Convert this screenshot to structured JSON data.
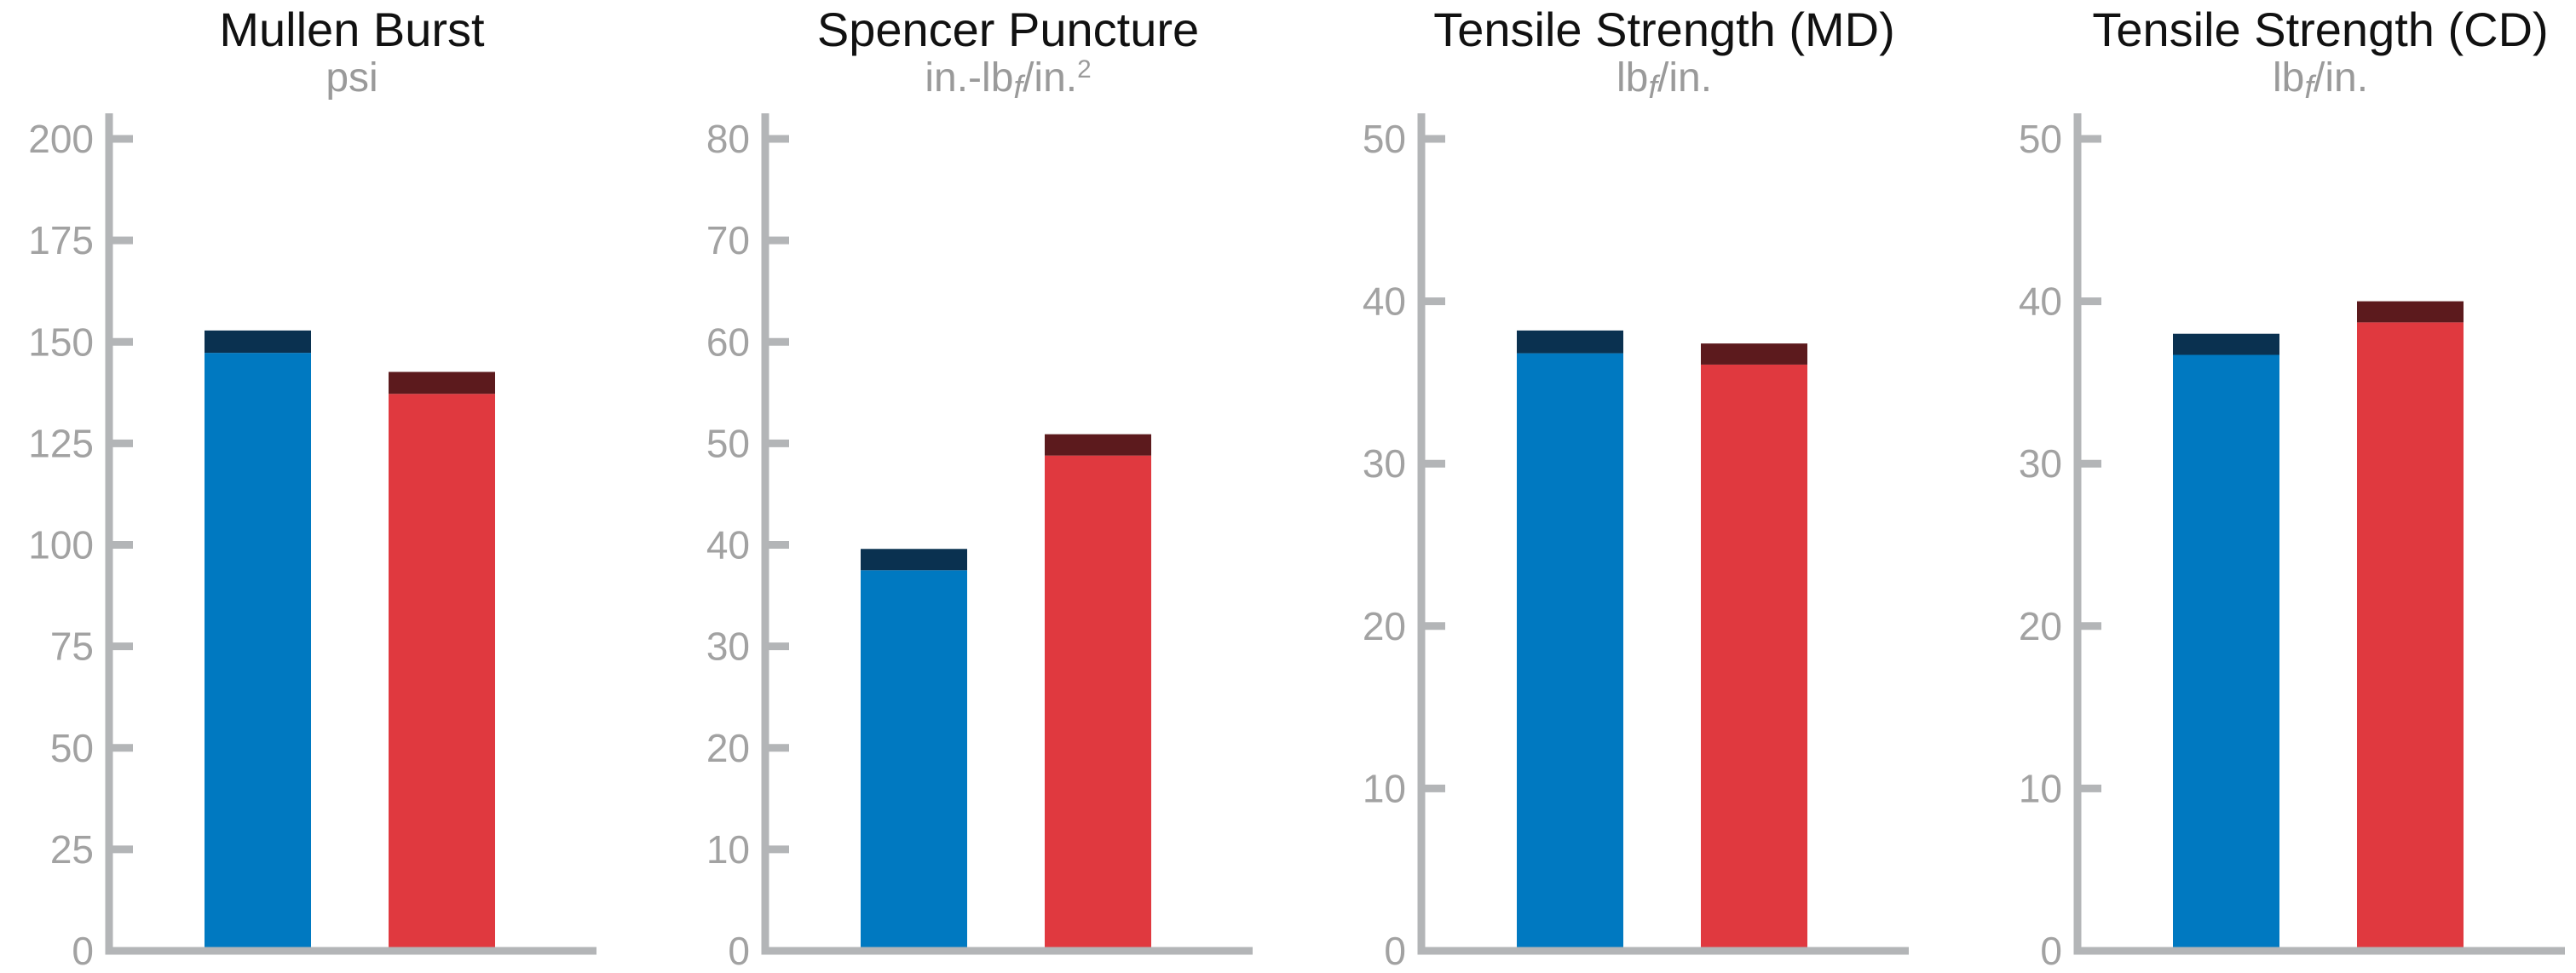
{
  "colors": {
    "series_a": "#0079c1",
    "series_a_cap": "#0a3150",
    "series_b": "#e0393f",
    "series_b_cap": "#5c1a1d",
    "axis": "#b3b5b7",
    "tick_label": "#a2a2a2",
    "title": "#111111"
  },
  "chart_data": [
    {
      "type": "bar",
      "title": "Mullen Burst",
      "unit": {
        "main": "psi",
        "sub": "",
        "tail": "",
        "sup": ""
      },
      "ylim": [
        0,
        200
      ],
      "yticks": [
        0,
        25,
        50,
        75,
        100,
        125,
        150,
        175,
        200
      ],
      "grid": false,
      "bars": [
        {
          "value": 147.3,
          "error_top": 152.8
        },
        {
          "value": 137.2,
          "error_top": 142.6
        }
      ]
    },
    {
      "type": "bar",
      "title": "Spencer Puncture",
      "unit": {
        "main": "in.-lb",
        "sub": "f",
        "tail": "/in.",
        "sup": "2"
      },
      "ylim": [
        0,
        80
      ],
      "yticks": [
        0,
        10,
        20,
        30,
        40,
        50,
        60,
        70,
        80
      ],
      "grid": false,
      "bars": [
        {
          "value": 37.5,
          "error_top": 39.6
        },
        {
          "value": 48.8,
          "error_top": 50.9
        }
      ]
    },
    {
      "type": "bar",
      "title": "Tensile Strength (MD)",
      "unit": {
        "main": "lb",
        "sub": "f",
        "tail": "/in.",
        "sup": ""
      },
      "ylim": [
        0,
        50
      ],
      "yticks": [
        0,
        10,
        20,
        30,
        40,
        50
      ],
      "grid": false,
      "bars": [
        {
          "value": 36.8,
          "error_top": 38.2
        },
        {
          "value": 36.1,
          "error_top": 37.4
        }
      ]
    },
    {
      "type": "bar",
      "title": "Tensile Strength (CD)",
      "unit": {
        "main": "lb",
        "sub": "f",
        "tail": "/in.",
        "sup": ""
      },
      "ylim": [
        0,
        50
      ],
      "yticks": [
        0,
        10,
        20,
        30,
        40,
        50
      ],
      "grid": false,
      "bars": [
        {
          "value": 36.7,
          "error_top": 38.0
        },
        {
          "value": 38.7,
          "error_top": 40.0
        }
      ]
    }
  ]
}
